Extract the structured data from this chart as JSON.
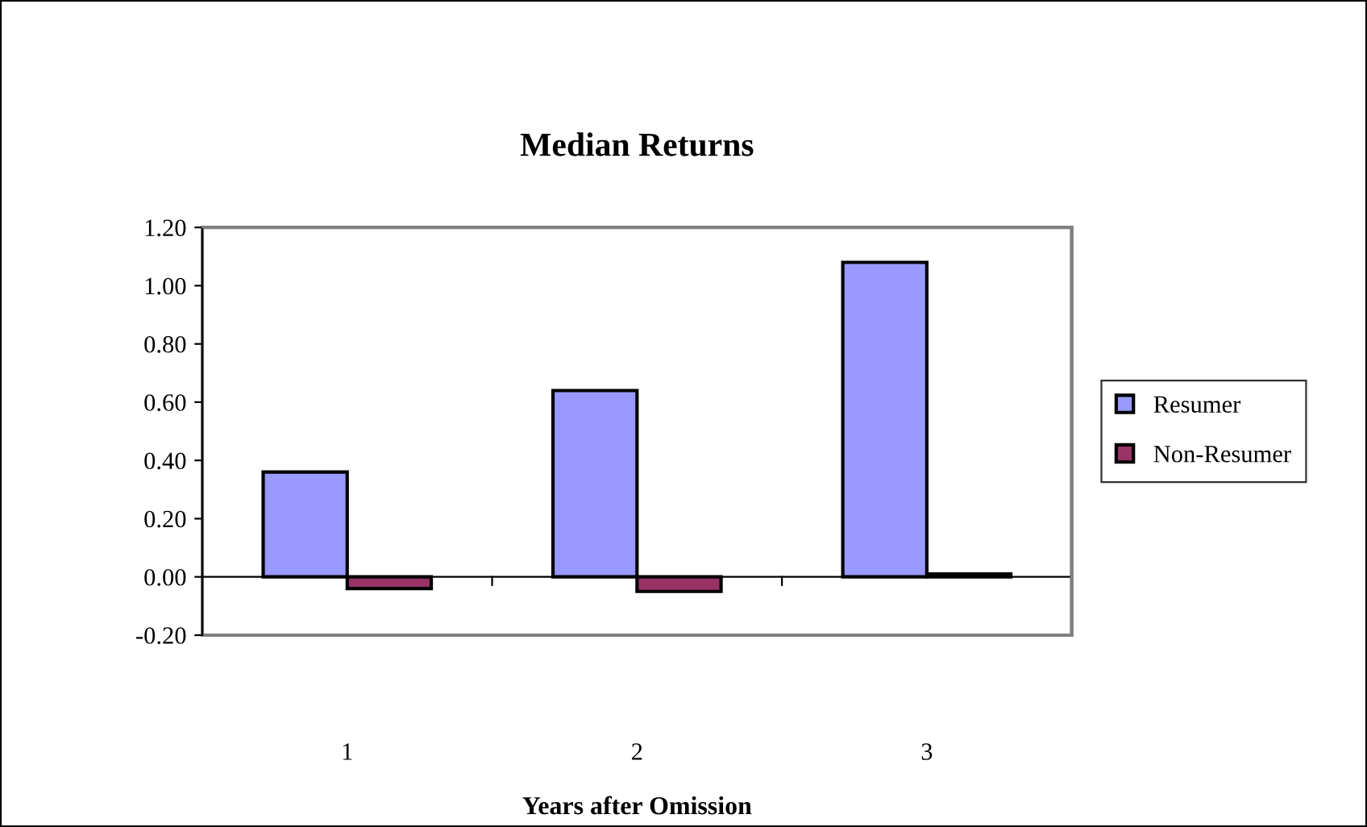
{
  "chart_data": {
    "type": "bar",
    "title": "Median Returns",
    "xlabel": "Years after Omission",
    "categories": [
      "1",
      "2",
      "3"
    ],
    "series": [
      {
        "name": "Resumer",
        "color": "#9999ff",
        "values": [
          0.36,
          0.64,
          1.08
        ]
      },
      {
        "name": "Non-Resumer",
        "color": "#993366",
        "values": [
          -0.04,
          -0.05,
          0.01
        ]
      }
    ],
    "ylim": [
      -0.2,
      1.2
    ],
    "yticks": [
      {
        "value": -0.2,
        "label": "-0.20"
      },
      {
        "value": 0,
        "label": "0.00"
      },
      {
        "value": 0.2,
        "label": "0.20"
      },
      {
        "value": 0.4,
        "label": "0.40"
      },
      {
        "value": 0.6,
        "label": "0.60"
      },
      {
        "value": 0.8,
        "label": "0.80"
      },
      {
        "value": 1.0,
        "label": "1.00"
      },
      {
        "value": 1.2,
        "label": "1.20"
      }
    ],
    "ref_lines": [
      {
        "axis": "y",
        "value": 0,
        "color": "#000000"
      }
    ],
    "grid": false,
    "legend": "right"
  }
}
